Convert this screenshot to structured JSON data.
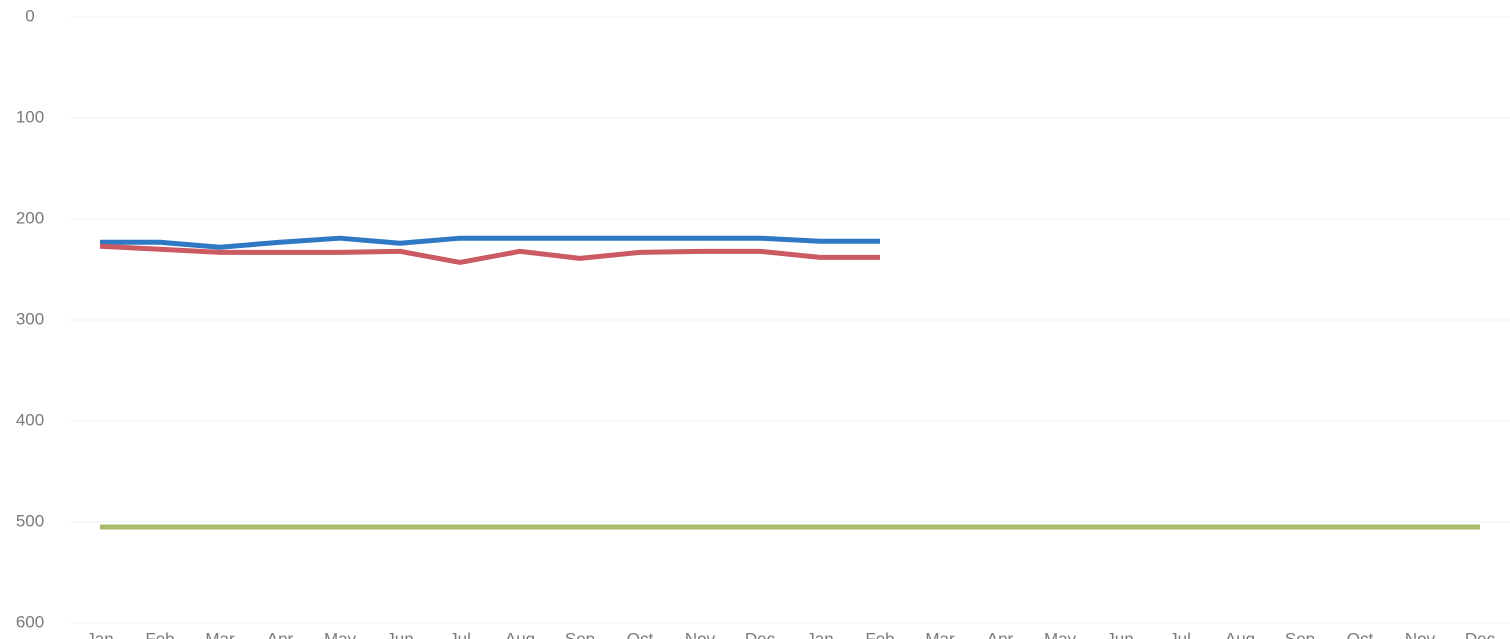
{
  "chart_data": {
    "type": "line",
    "categories": [
      "Jan",
      "Feb",
      "Mar",
      "Apr",
      "May",
      "Jun",
      "Jul",
      "Aug",
      "Sep",
      "Oct",
      "Nov",
      "Dec",
      "Jan",
      "Feb",
      "Mar",
      "Apr",
      "May",
      "Jun",
      "Jul",
      "Aug",
      "Sep",
      "Oct",
      "Nov",
      "Dec"
    ],
    "series": [
      {
        "color": "#2f78c4",
        "values": [
          223,
          223,
          228,
          223,
          219,
          224,
          219,
          219,
          219,
          219,
          219,
          219,
          222,
          222,
          null,
          null,
          null,
          null,
          null,
          null,
          null,
          null,
          null,
          null
        ]
      },
      {
        "color": "#cc5a63",
        "values": [
          227,
          230,
          233,
          233,
          233,
          232,
          243,
          232,
          239,
          233,
          232,
          232,
          238,
          238,
          null,
          null,
          null,
          null,
          null,
          null,
          null,
          null,
          null,
          null
        ]
      },
      {
        "color": "#a9bc6c",
        "values": [
          505,
          505,
          505,
          505,
          505,
          505,
          505,
          505,
          505,
          505,
          505,
          505,
          505,
          505,
          505,
          505,
          505,
          505,
          505,
          505,
          505,
          505,
          505,
          505
        ]
      }
    ],
    "ylim": [
      0,
      600
    ],
    "y_inverted": true,
    "yticks": [
      0,
      100,
      200,
      300,
      400,
      500,
      600
    ],
    "grid": true
  }
}
